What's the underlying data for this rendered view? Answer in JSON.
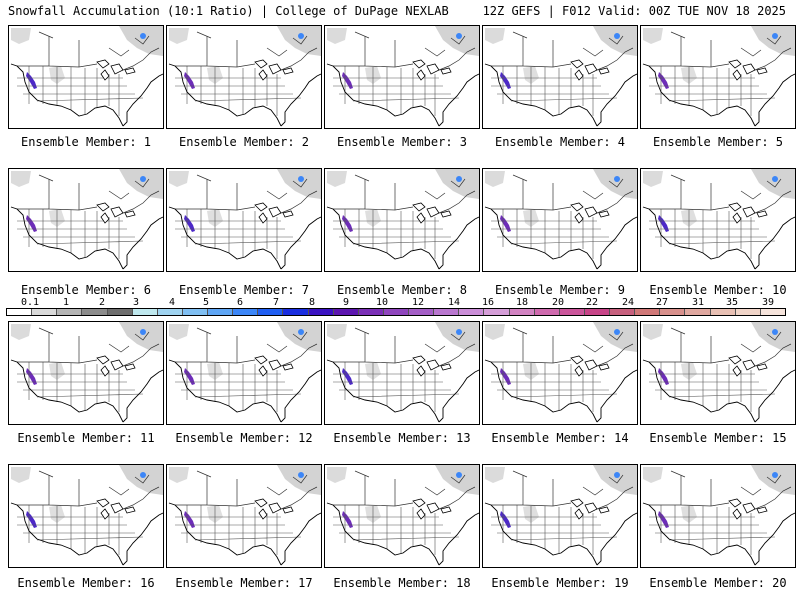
{
  "header": {
    "left": "Snowfall Accumulation (10:1 Ratio) | College of DuPage NEXLAB",
    "right": "12Z GEFS | F012 Valid: 00Z TUE NOV 18 2025"
  },
  "panels": [
    {
      "label": "Ensemble Member: 1"
    },
    {
      "label": "Ensemble Member: 2"
    },
    {
      "label": "Ensemble Member: 3"
    },
    {
      "label": "Ensemble Member: 4"
    },
    {
      "label": "Ensemble Member: 5"
    },
    {
      "label": "Ensemble Member: 6"
    },
    {
      "label": "Ensemble Member: 7"
    },
    {
      "label": "Ensemble Member: 8"
    },
    {
      "label": "Ensemble Member: 9"
    },
    {
      "label": "Ensemble Member: 10"
    },
    {
      "label": "Ensemble Member: 11"
    },
    {
      "label": "Ensemble Member: 12"
    },
    {
      "label": "Ensemble Member: 13"
    },
    {
      "label": "Ensemble Member: 14"
    },
    {
      "label": "Ensemble Member: 15"
    },
    {
      "label": "Ensemble Member: 16"
    },
    {
      "label": "Ensemble Member: 17"
    },
    {
      "label": "Ensemble Member: 18"
    },
    {
      "label": "Ensemble Member: 19"
    },
    {
      "label": "Ensemble Member: 20"
    }
  ],
  "colorbar": {
    "labels": [
      "0.1",
      "1",
      "2",
      "3",
      "4",
      "5",
      "6",
      "7",
      "8",
      "9",
      "10",
      "12",
      "14",
      "16",
      "18",
      "20",
      "22",
      "24",
      "27",
      "31",
      "35",
      "39"
    ],
    "colors": [
      "#ffffff",
      "#d9d9d9",
      "#b4b4b4",
      "#8c8c8c",
      "#6e6e6e",
      "#bfe8ee",
      "#9fd3f0",
      "#80bff2",
      "#5fa6f5",
      "#3c86f7",
      "#1f5ef2",
      "#1a2ee0",
      "#3a12c2",
      "#5d16b0",
      "#7a2fb6",
      "#8f45bd",
      "#a45ec6",
      "#b977cf",
      "#cb8ed8",
      "#d59ed8",
      "#d283c2",
      "#cf6aae",
      "#cb559b",
      "#c74488",
      "#c7607e",
      "#d07878",
      "#d8908c",
      "#e0a8a0",
      "#e8c0b4",
      "#f0d4c8",
      "#f6e4dc"
    ]
  }
}
